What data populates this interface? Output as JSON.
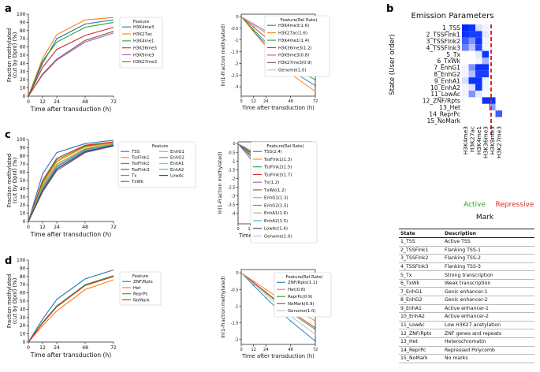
{
  "panels": {
    "a": "a",
    "b": "b",
    "c": "c",
    "d": "d"
  },
  "common": {
    "xlabel": "Time after transduction (h)",
    "ylabel_left": [
      "Fraction methylated",
      "(cut by DpnI) (%)"
    ],
    "ylabel_right": "ln(1-Fraction methylated)",
    "xticks": [
      0,
      12,
      24,
      48,
      72
    ]
  },
  "chart_data": [
    {
      "id": "a-left",
      "type": "line",
      "ylim": [
        0,
        100
      ],
      "yticks": [
        0,
        10,
        20,
        30,
        40,
        50,
        60,
        70,
        80,
        90,
        100
      ],
      "legend_title": "Feature",
      "series": [
        {
          "name": "H3K4me3",
          "color": "#1f77b4",
          "values": [
            0,
            40,
            70,
            88,
            93
          ]
        },
        {
          "name": "H3K27ac",
          "color": "#ff7f0e",
          "values": [
            0,
            46,
            75,
            93,
            96
          ]
        },
        {
          "name": "H3K4me1",
          "color": "#2ca02c",
          "values": [
            0,
            43,
            66,
            84,
            90
          ]
        },
        {
          "name": "H3K36me3",
          "color": "#d62728",
          "values": [
            0,
            35,
            57,
            74,
            84
          ]
        },
        {
          "name": "H3K9me3",
          "color": "#9467bd",
          "values": [
            0,
            26,
            44,
            66,
            77
          ]
        },
        {
          "name": "H3K27me3",
          "color": "#8c564b",
          "values": [
            0,
            27,
            45,
            68,
            79
          ]
        }
      ]
    },
    {
      "id": "a-right",
      "type": "line",
      "ylim": [
        -3.4,
        0.1
      ],
      "yticks": [
        0,
        -0.5,
        -1,
        -1.5,
        -2,
        -2.5,
        -3
      ],
      "legend_title": "Feature(Rel Rate)",
      "series": [
        {
          "name": "H3K4me3(1.6)",
          "color": "#1f77b4",
          "values": [
            0,
            -0.62,
            -1.2,
            -2.3,
            -2.95
          ]
        },
        {
          "name": "H3K27ac(1.6)",
          "color": "#ff7f0e",
          "values": [
            0,
            -0.65,
            -1.28,
            -2.45,
            -3.2
          ]
        },
        {
          "name": "H3K4me1(1.4)",
          "color": "#2ca02c",
          "values": [
            0,
            -0.56,
            -1.1,
            -2.15,
            -2.7
          ]
        },
        {
          "name": "H3K36me3(1.2)",
          "color": "#d62728",
          "values": [
            0,
            -0.45,
            -0.9,
            -1.75,
            -2.2
          ]
        },
        {
          "name": "H3K9me3(0.8)",
          "color": "#9467bd",
          "values": [
            0,
            -0.32,
            -0.62,
            -1.2,
            -1.55
          ]
        },
        {
          "name": "H3K27me3(0.9)",
          "color": "#8c564b",
          "values": [
            0,
            -0.36,
            -0.7,
            -1.35,
            -1.75
          ]
        },
        {
          "name": "Genome(1.0)",
          "color": "#bdbdbd",
          "values": [
            0,
            -0.35,
            -0.72,
            -1.4,
            -1.9
          ]
        }
      ]
    },
    {
      "id": "c-left",
      "type": "line",
      "ylim": [
        0,
        100
      ],
      "yticks": [
        0,
        10,
        20,
        30,
        40,
        50,
        60,
        70,
        80,
        90,
        100
      ],
      "legend_title": "Feature",
      "series": [
        {
          "name": "TSS",
          "color": "#1f77b4",
          "values": [
            0,
            58,
            84,
            95,
            99
          ]
        },
        {
          "name": "TssFlnk1",
          "color": "#ff7f0e",
          "values": [
            0,
            46,
            73,
            91,
            96
          ]
        },
        {
          "name": "TssFlnk2",
          "color": "#2ca02c",
          "values": [
            0,
            48,
            75,
            92,
            97
          ]
        },
        {
          "name": "TssFlnk3",
          "color": "#d62728",
          "values": [
            0,
            50,
            77,
            93,
            97
          ]
        },
        {
          "name": "Tx",
          "color": "#9467bd",
          "values": [
            0,
            38,
            64,
            86,
            93
          ]
        },
        {
          "name": "TxWk",
          "color": "#8c564b",
          "values": [
            0,
            36,
            62,
            84,
            92
          ]
        },
        {
          "name": "EnhG1",
          "color": "#e377c2",
          "values": [
            0,
            43,
            69,
            89,
            95
          ]
        },
        {
          "name": "EnhG2",
          "color": "#7f7f7f",
          "values": [
            0,
            41,
            67,
            88,
            94
          ]
        },
        {
          "name": "EnhA1",
          "color": "#bcbd22",
          "values": [
            0,
            44,
            70,
            89,
            95
          ]
        },
        {
          "name": "EnhA2",
          "color": "#17becf",
          "values": [
            0,
            40,
            66,
            87,
            94
          ]
        },
        {
          "name": "LowAc",
          "color": "#393b79",
          "values": [
            0,
            38,
            64,
            85,
            93
          ]
        }
      ]
    },
    {
      "id": "c-right",
      "type": "line",
      "ylim": [
        -4.6,
        0.1
      ],
      "yticks": [
        0,
        -0.5,
        -1,
        -1.5,
        -2,
        -2.5,
        -3,
        -3.5,
        -4
      ],
      "legend_title": "Feature(Rel Rate)",
      "series": [
        {
          "name": "TSS(2.4)",
          "color": "#1f77b4",
          "values": [
            0,
            -0.86,
            -1.8,
            -3.1,
            -4.5
          ]
        },
        {
          "name": "TssFlnk1(1.3)",
          "color": "#ff7f0e",
          "values": [
            0,
            -0.6,
            -1.2,
            -2.2,
            -3.0
          ]
        },
        {
          "name": "TssFlnk2(1.5)",
          "color": "#2ca02c",
          "values": [
            0,
            -0.65,
            -1.35,
            -2.5,
            -3.4
          ]
        },
        {
          "name": "TssFlnk3(1.7)",
          "color": "#d62728",
          "values": [
            0,
            -0.7,
            -1.45,
            -2.6,
            -3.6
          ]
        },
        {
          "name": "Tx(1.2)",
          "color": "#9467bd",
          "values": [
            0,
            -0.48,
            -1.0,
            -1.9,
            -2.6
          ]
        },
        {
          "name": "TxWk(1.2)",
          "color": "#8c564b",
          "values": [
            0,
            -0.45,
            -0.95,
            -1.8,
            -2.5
          ]
        },
        {
          "name": "EnhG1(1.3)",
          "color": "#e377c2",
          "values": [
            0,
            -0.56,
            -1.15,
            -2.1,
            -2.9
          ]
        },
        {
          "name": "EnhG2(1.5)",
          "color": "#7f7f7f",
          "values": [
            0,
            -0.53,
            -1.1,
            -2.05,
            -2.8
          ]
        },
        {
          "name": "EnhA1(1.6)",
          "color": "#bcbd22",
          "values": [
            0,
            -0.58,
            -1.2,
            -2.15,
            -2.95
          ]
        },
        {
          "name": "EnhA2(1.5)",
          "color": "#17becf",
          "values": [
            0,
            -0.52,
            -1.08,
            -2.0,
            -2.75
          ]
        },
        {
          "name": "LowAc(1.4)",
          "color": "#393b79",
          "values": [
            0,
            -0.48,
            -1.0,
            -1.85,
            -2.6
          ]
        },
        {
          "name": "Genome(1.0)",
          "color": "#bdbdbd",
          "values": [
            0,
            -0.36,
            -0.72,
            -1.35,
            -1.9
          ]
        }
      ]
    },
    {
      "id": "d-left",
      "type": "line",
      "ylim": [
        0,
        100
      ],
      "yticks": [
        0,
        10,
        20,
        30,
        40,
        50,
        60,
        70,
        80,
        90,
        100
      ],
      "legend_title": "Feature",
      "series": [
        {
          "name": "ZNF/Rpts",
          "color": "#1f77b4",
          "values": [
            0,
            28,
            52,
            77,
            88
          ]
        },
        {
          "name": "Het",
          "color": "#ff7f0e",
          "values": [
            0,
            20,
            38,
            64,
            76
          ]
        },
        {
          "name": "ReprPc",
          "color": "#2ca02c",
          "values": [
            0,
            24,
            44,
            70,
            81
          ]
        },
        {
          "name": "NoMark",
          "color": "#d62728",
          "values": [
            0,
            23,
            43,
            69,
            80
          ]
        }
      ]
    },
    {
      "id": "d-right",
      "type": "line",
      "ylim": [
        -2.15,
        0.1
      ],
      "yticks": [
        0,
        -0.5,
        -1,
        -1.5,
        -2
      ],
      "legend_title": "Feature(Rel Rate)",
      "series": [
        {
          "name": "ZNF/Rpts(1.1)",
          "color": "#1f77b4",
          "values": [
            0,
            -0.38,
            -0.75,
            -1.45,
            -2.05
          ]
        },
        {
          "name": "Het(0.8)",
          "color": "#ff7f0e",
          "values": [
            0,
            -0.25,
            -0.5,
            -1.0,
            -1.45
          ]
        },
        {
          "name": "ReprPc(0.9)",
          "color": "#2ca02c",
          "values": [
            0,
            -0.3,
            -0.6,
            -1.2,
            -1.7
          ]
        },
        {
          "name": "NoMark(0.9)",
          "color": "#d62728",
          "values": [
            0,
            -0.29,
            -0.58,
            -1.16,
            -1.65
          ]
        },
        {
          "name": "Genome(1.0)",
          "color": "#bdbdbd",
          "values": [
            0,
            -0.33,
            -0.66,
            -1.3,
            -1.85
          ]
        }
      ]
    },
    {
      "id": "b-heatmap",
      "type": "heatmap",
      "title": "Emission Parameters",
      "ylabel": "State (User order)",
      "xlabel": "Mark",
      "active_label": "Active",
      "repressive_label": "Repressive",
      "active_color": "#2ca02c",
      "repressive_color": "#d62728",
      "rows": [
        "1_TSS",
        "2_TSSFlnk1",
        "3_TSSFlnk2",
        "4_TSSFlnk3",
        "5_Tx",
        "6_TxWk",
        "7_EnhG1",
        "8_EnhG2",
        "9_EnhA1",
        "10_EnhA2",
        "11_LowAc",
        "12_ZNF/Rpts",
        "13_Het",
        "14_ReprPc",
        "15_NoMark"
      ],
      "columns": [
        "H3K4me3",
        "H3K27ac",
        "H3K4me1",
        "H3K36me3",
        "H3K9me3",
        "H3K27me3"
      ],
      "values": [
        [
          1.0,
          0.95,
          0.15,
          0.05,
          0.0,
          0.0
        ],
        [
          0.95,
          0.9,
          0.9,
          0.1,
          0.0,
          0.0
        ],
        [
          0.75,
          0.5,
          0.95,
          0.05,
          0.0,
          0.0
        ],
        [
          0.6,
          0.3,
          0.85,
          0.05,
          0.0,
          0.0
        ],
        [
          0.0,
          0.0,
          0.1,
          0.95,
          0.0,
          0.0
        ],
        [
          0.0,
          0.0,
          0.05,
          0.35,
          0.0,
          0.0
        ],
        [
          0.05,
          0.5,
          0.95,
          0.95,
          0.0,
          0.0
        ],
        [
          0.05,
          0.3,
          0.9,
          0.9,
          0.0,
          0.0
        ],
        [
          0.15,
          0.95,
          0.95,
          0.05,
          0.0,
          0.0
        ],
        [
          0.05,
          0.15,
          0.95,
          0.05,
          0.0,
          0.0
        ],
        [
          0.05,
          0.5,
          0.1,
          0.0,
          0.0,
          0.0
        ],
        [
          0.0,
          0.0,
          0.0,
          0.95,
          0.95,
          0.0
        ],
        [
          0.0,
          0.0,
          0.0,
          0.0,
          0.45,
          0.0
        ],
        [
          0.0,
          0.0,
          0.0,
          0.0,
          0.0,
          0.75
        ],
        [
          0.0,
          0.0,
          0.0,
          0.0,
          0.0,
          0.0
        ]
      ]
    }
  ],
  "state_table": {
    "headers": [
      "State",
      "Description"
    ],
    "rows": [
      [
        "1_TSS",
        "Active TSS"
      ],
      [
        "2_TSSFlnk1",
        "Flanking TSS-1"
      ],
      [
        "3_TSSFlnk2",
        "Flanking TSS-2"
      ],
      [
        "4_TSSFlnk3",
        "Flanking TSS-3"
      ],
      [
        "5_Tx",
        "Strong transcription"
      ],
      [
        "6_TxWk",
        "Weak transcription"
      ],
      [
        "7_EnhG1",
        "Genic enhancer-1"
      ],
      [
        "8_EnhG2",
        "Genic enhancer-2"
      ],
      [
        "9_EnhA1",
        "Active enhancer-1"
      ],
      [
        "10_EnhA2",
        "Active enhancer-2"
      ],
      [
        "11_LowAc",
        "Low H3K27 acetylation"
      ],
      [
        "12_ZNF/Rpts",
        "ZNF genes and repeats"
      ],
      [
        "13_Het",
        "Heterochromatin"
      ],
      [
        "14_ReprPc",
        "Repressed Polycomb"
      ],
      [
        "15_NoMark",
        "No marks"
      ]
    ]
  }
}
